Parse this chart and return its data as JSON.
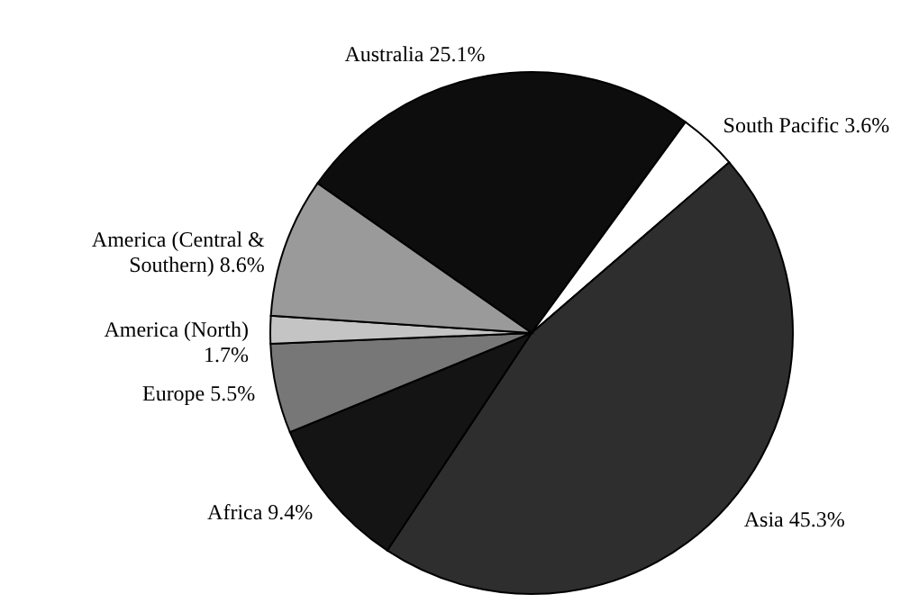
{
  "chart_data": {
    "type": "pie",
    "categories": [
      "Australia",
      "South Pacific",
      "Asia",
      "Africa",
      "Europe",
      "America (North)",
      "America (Central & Southern)"
    ],
    "values": [
      25.1,
      3.6,
      45.3,
      9.4,
      5.5,
      1.7,
      8.6
    ],
    "value_labels": [
      "25.1%",
      "3.6%",
      "45.3%",
      "9.4%",
      "5.5%",
      "1.7%",
      "8.6%"
    ],
    "colors": [
      "#0d0d0d",
      "#ffffff",
      "#2e2e2e",
      "#141414",
      "#777777",
      "#c4c4c4",
      "#9a9a9a"
    ]
  }
}
